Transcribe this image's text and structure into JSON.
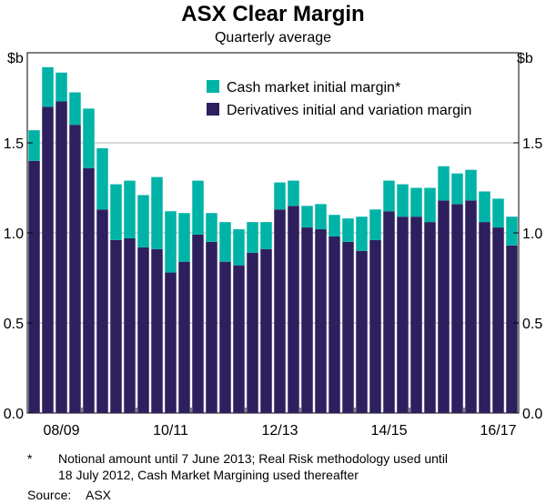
{
  "chart_data": {
    "type": "bar",
    "stacked": true,
    "title": "ASX Clear Margin",
    "subtitle": "Quarterly average",
    "ylabel_left": "$b",
    "ylabel_right": "$b",
    "ylim": [
      0,
      2.0
    ],
    "yticks": [
      "0.0",
      "0.5",
      "1.0",
      "1.5"
    ],
    "ytick_values": [
      0,
      0.5,
      1.0,
      1.5
    ],
    "gridlines": [
      0.5,
      1.0,
      1.5
    ],
    "xtick_labels": [
      {
        "label": "08/09",
        "index": 2
      },
      {
        "label": "10/11",
        "index": 10
      },
      {
        "label": "12/13",
        "index": 18
      },
      {
        "label": "14/15",
        "index": 26
      },
      {
        "label": "16/17",
        "index": 34
      }
    ],
    "legend_position": "top-right",
    "series": [
      {
        "name": "Derivatives initial and variation margin",
        "color": "#2e1f5e",
        "values": [
          1.4,
          1.7,
          1.73,
          1.6,
          1.36,
          1.13,
          0.96,
          0.97,
          0.92,
          0.91,
          0.78,
          0.84,
          0.99,
          0.95,
          0.84,
          0.82,
          0.89,
          0.91,
          1.13,
          1.15,
          1.03,
          1.02,
          0.98,
          0.95,
          0.9,
          0.96,
          1.12,
          1.09,
          1.09,
          1.06,
          1.18,
          1.16,
          1.18,
          1.06,
          1.03,
          0.93
        ]
      },
      {
        "name": "Cash market initial margin*",
        "color": "#00b3a7",
        "values": [
          0.17,
          0.22,
          0.16,
          0.18,
          0.33,
          0.34,
          0.31,
          0.32,
          0.29,
          0.4,
          0.34,
          0.27,
          0.3,
          0.16,
          0.22,
          0.2,
          0.17,
          0.15,
          0.15,
          0.14,
          0.12,
          0.14,
          0.12,
          0.13,
          0.19,
          0.17,
          0.17,
          0.18,
          0.16,
          0.19,
          0.19,
          0.17,
          0.17,
          0.17,
          0.16,
          0.16
        ]
      }
    ]
  },
  "footnote": {
    "marker": "*",
    "line1": "Notional amount until 7 June 2013; Real Risk methodology used until",
    "line2": "18 July 2012, Cash Market Margining used thereafter"
  },
  "source": {
    "label": "Source:",
    "value": "ASX"
  }
}
